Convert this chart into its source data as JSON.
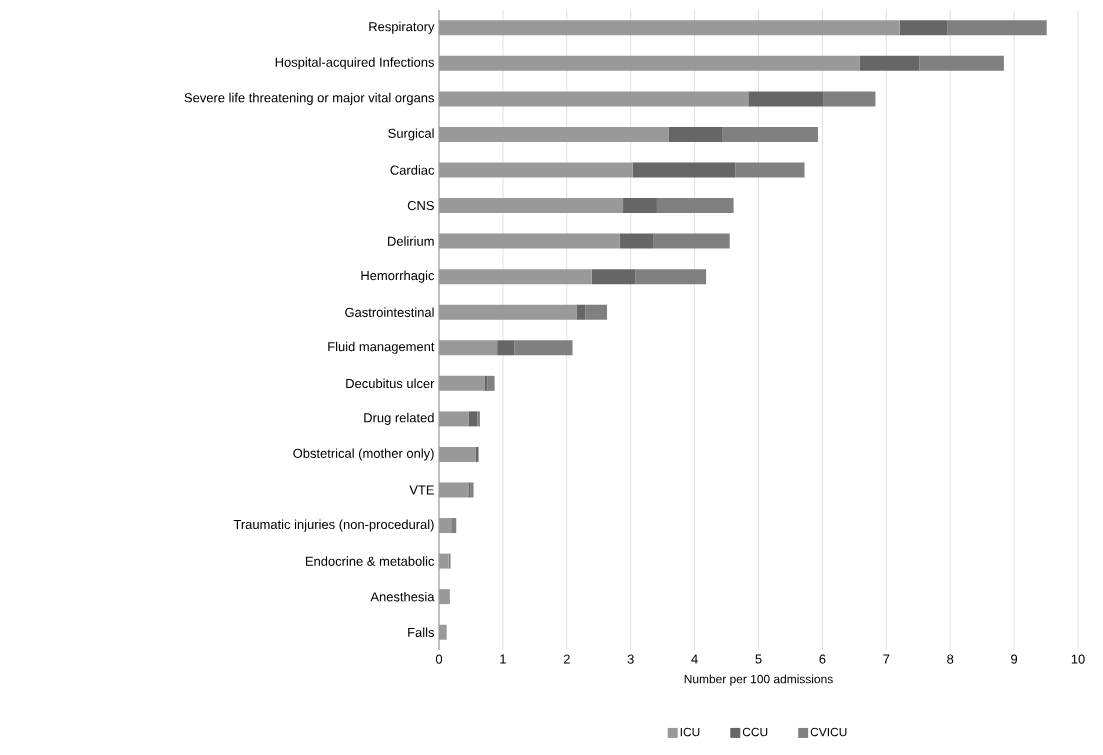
{
  "chart_data": {
    "type": "bar",
    "orientation": "horizontal",
    "stacked": true,
    "xlabel": "Number per 100 admissions",
    "categories": [
      "Respiratory",
      "Hospital-acquired Infections",
      "Severe life threatening or major vital organs",
      "Surgical",
      "Cardiac",
      "CNS",
      "Delirium",
      "Hemorrhagic",
      "Gastrointestinal",
      "Fluid management",
      "Decubitus ulcer",
      "Drug related",
      "Obstetrical (mother only)",
      "VTE",
      "Traumatic injuries (non-procedural)",
      "Endocrine & metabolic",
      "Anesthesia",
      "Falls"
    ],
    "series": [
      {
        "name": "ICU",
        "color": "#999999",
        "values": [
          7.21,
          6.58,
          4.84,
          3.59,
          3.03,
          2.88,
          2.83,
          2.39,
          2.15,
          0.91,
          0.71,
          0.46,
          0.57,
          0.46,
          0.19,
          0.15,
          0.17,
          0.12
        ]
      },
      {
        "name": "CCU",
        "color": "#666666",
        "values": [
          0.75,
          0.94,
          1.17,
          0.85,
          1.61,
          0.53,
          0.53,
          0.68,
          0.14,
          0.27,
          0.05,
          0.14,
          0.04,
          0.03,
          0,
          0,
          0,
          0
        ]
      },
      {
        "name": "CVICU",
        "color": "#808080",
        "values": [
          1.55,
          1.32,
          0.82,
          1.49,
          1.08,
          1.2,
          1.19,
          1.11,
          0.34,
          0.91,
          0.11,
          0.04,
          0.01,
          0.05,
          0.08,
          0.03,
          0,
          0
        ]
      }
    ],
    "xlim": [
      0,
      10
    ],
    "xticks": [
      0,
      1,
      2,
      3,
      4,
      5,
      6,
      7,
      8,
      9,
      10
    ],
    "grid": "x",
    "legend": "bottom"
  }
}
